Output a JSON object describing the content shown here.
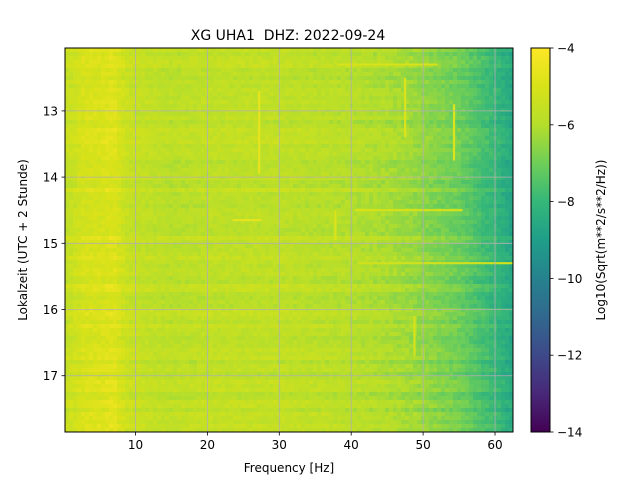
{
  "chart_data": {
    "type": "heatmap",
    "title": "XG UHA1  DHZ: 2022-09-24",
    "xlabel": "Frequency [Hz]",
    "ylabel": "Lokalzeit (UTC + 2 Stunde)",
    "xlim": [
      0.2,
      62.5
    ],
    "ylim": [
      17.85,
      12.05
    ],
    "x_ticks": [
      10,
      20,
      30,
      40,
      50,
      60
    ],
    "x_tick_labels": [
      "10",
      "20",
      "30",
      "40",
      "50",
      "60"
    ],
    "y_ticks": [
      13,
      14,
      15,
      16,
      17
    ],
    "y_tick_labels": [
      "13",
      "14",
      "15",
      "16",
      "17"
    ],
    "grid": true,
    "colormap": "viridis",
    "colorbar": {
      "label": "Log10(Sqrt(m**2/s**2/Hz))",
      "range": [
        -14,
        -4
      ],
      "ticks": [
        -4,
        -6,
        -8,
        -10,
        -12,
        -14
      ],
      "tick_labels": [
        "−4",
        "−6",
        "−8",
        "−10",
        "−12",
        "−14"
      ]
    },
    "spectral_profile": {
      "frequency_hz": [
        0.2,
        3,
        5,
        7,
        9,
        15,
        20,
        30,
        35,
        40,
        45,
        48,
        50,
        52,
        55,
        57,
        60,
        62.5
      ],
      "log10_amplitude": [
        -5.6,
        -5.0,
        -5.0,
        -4.8,
        -5.5,
        -5.8,
        -5.7,
        -5.7,
        -5.8,
        -5.9,
        -6.1,
        -6.3,
        -6.5,
        -6.7,
        -7.0,
        -7.4,
        -8.0,
        -8.6
      ]
    },
    "features": [
      {
        "kind": "vertical_line",
        "frequency_hz": 27.2,
        "time_start": 12.7,
        "time_end": 13.95,
        "log10_amplitude": -4.6
      },
      {
        "kind": "vertical_line",
        "frequency_hz": 54.3,
        "time_start": 12.9,
        "time_end": 13.75,
        "log10_amplitude": -4.9
      },
      {
        "kind": "vertical_line",
        "frequency_hz": 47.5,
        "time_start": 12.5,
        "time_end": 13.4,
        "log10_amplitude": -4.9
      },
      {
        "kind": "vertical_line",
        "frequency_hz": 37.8,
        "time_start": 14.5,
        "time_end": 14.95,
        "log10_amplitude": -4.9
      },
      {
        "kind": "vertical_line",
        "frequency_hz": 48.8,
        "time_start": 16.1,
        "time_end": 16.7,
        "log10_amplitude": -5.0
      },
      {
        "kind": "horizontal_band",
        "time": 14.65,
        "freq_start": 23.5,
        "freq_end": 27.5,
        "log10_amplitude": -4.6
      },
      {
        "kind": "horizontal_band",
        "time": 14.5,
        "freq_start": 40.5,
        "freq_end": 55.5,
        "log10_amplitude": -5.0
      },
      {
        "kind": "horizontal_band",
        "time": 15.3,
        "freq_start": 41,
        "freq_end": 62.5,
        "log10_amplitude": -5.2
      },
      {
        "kind": "horizontal_band",
        "time": 12.3,
        "freq_start": 38,
        "freq_end": 52,
        "log10_amplitude": -5.0
      }
    ]
  }
}
